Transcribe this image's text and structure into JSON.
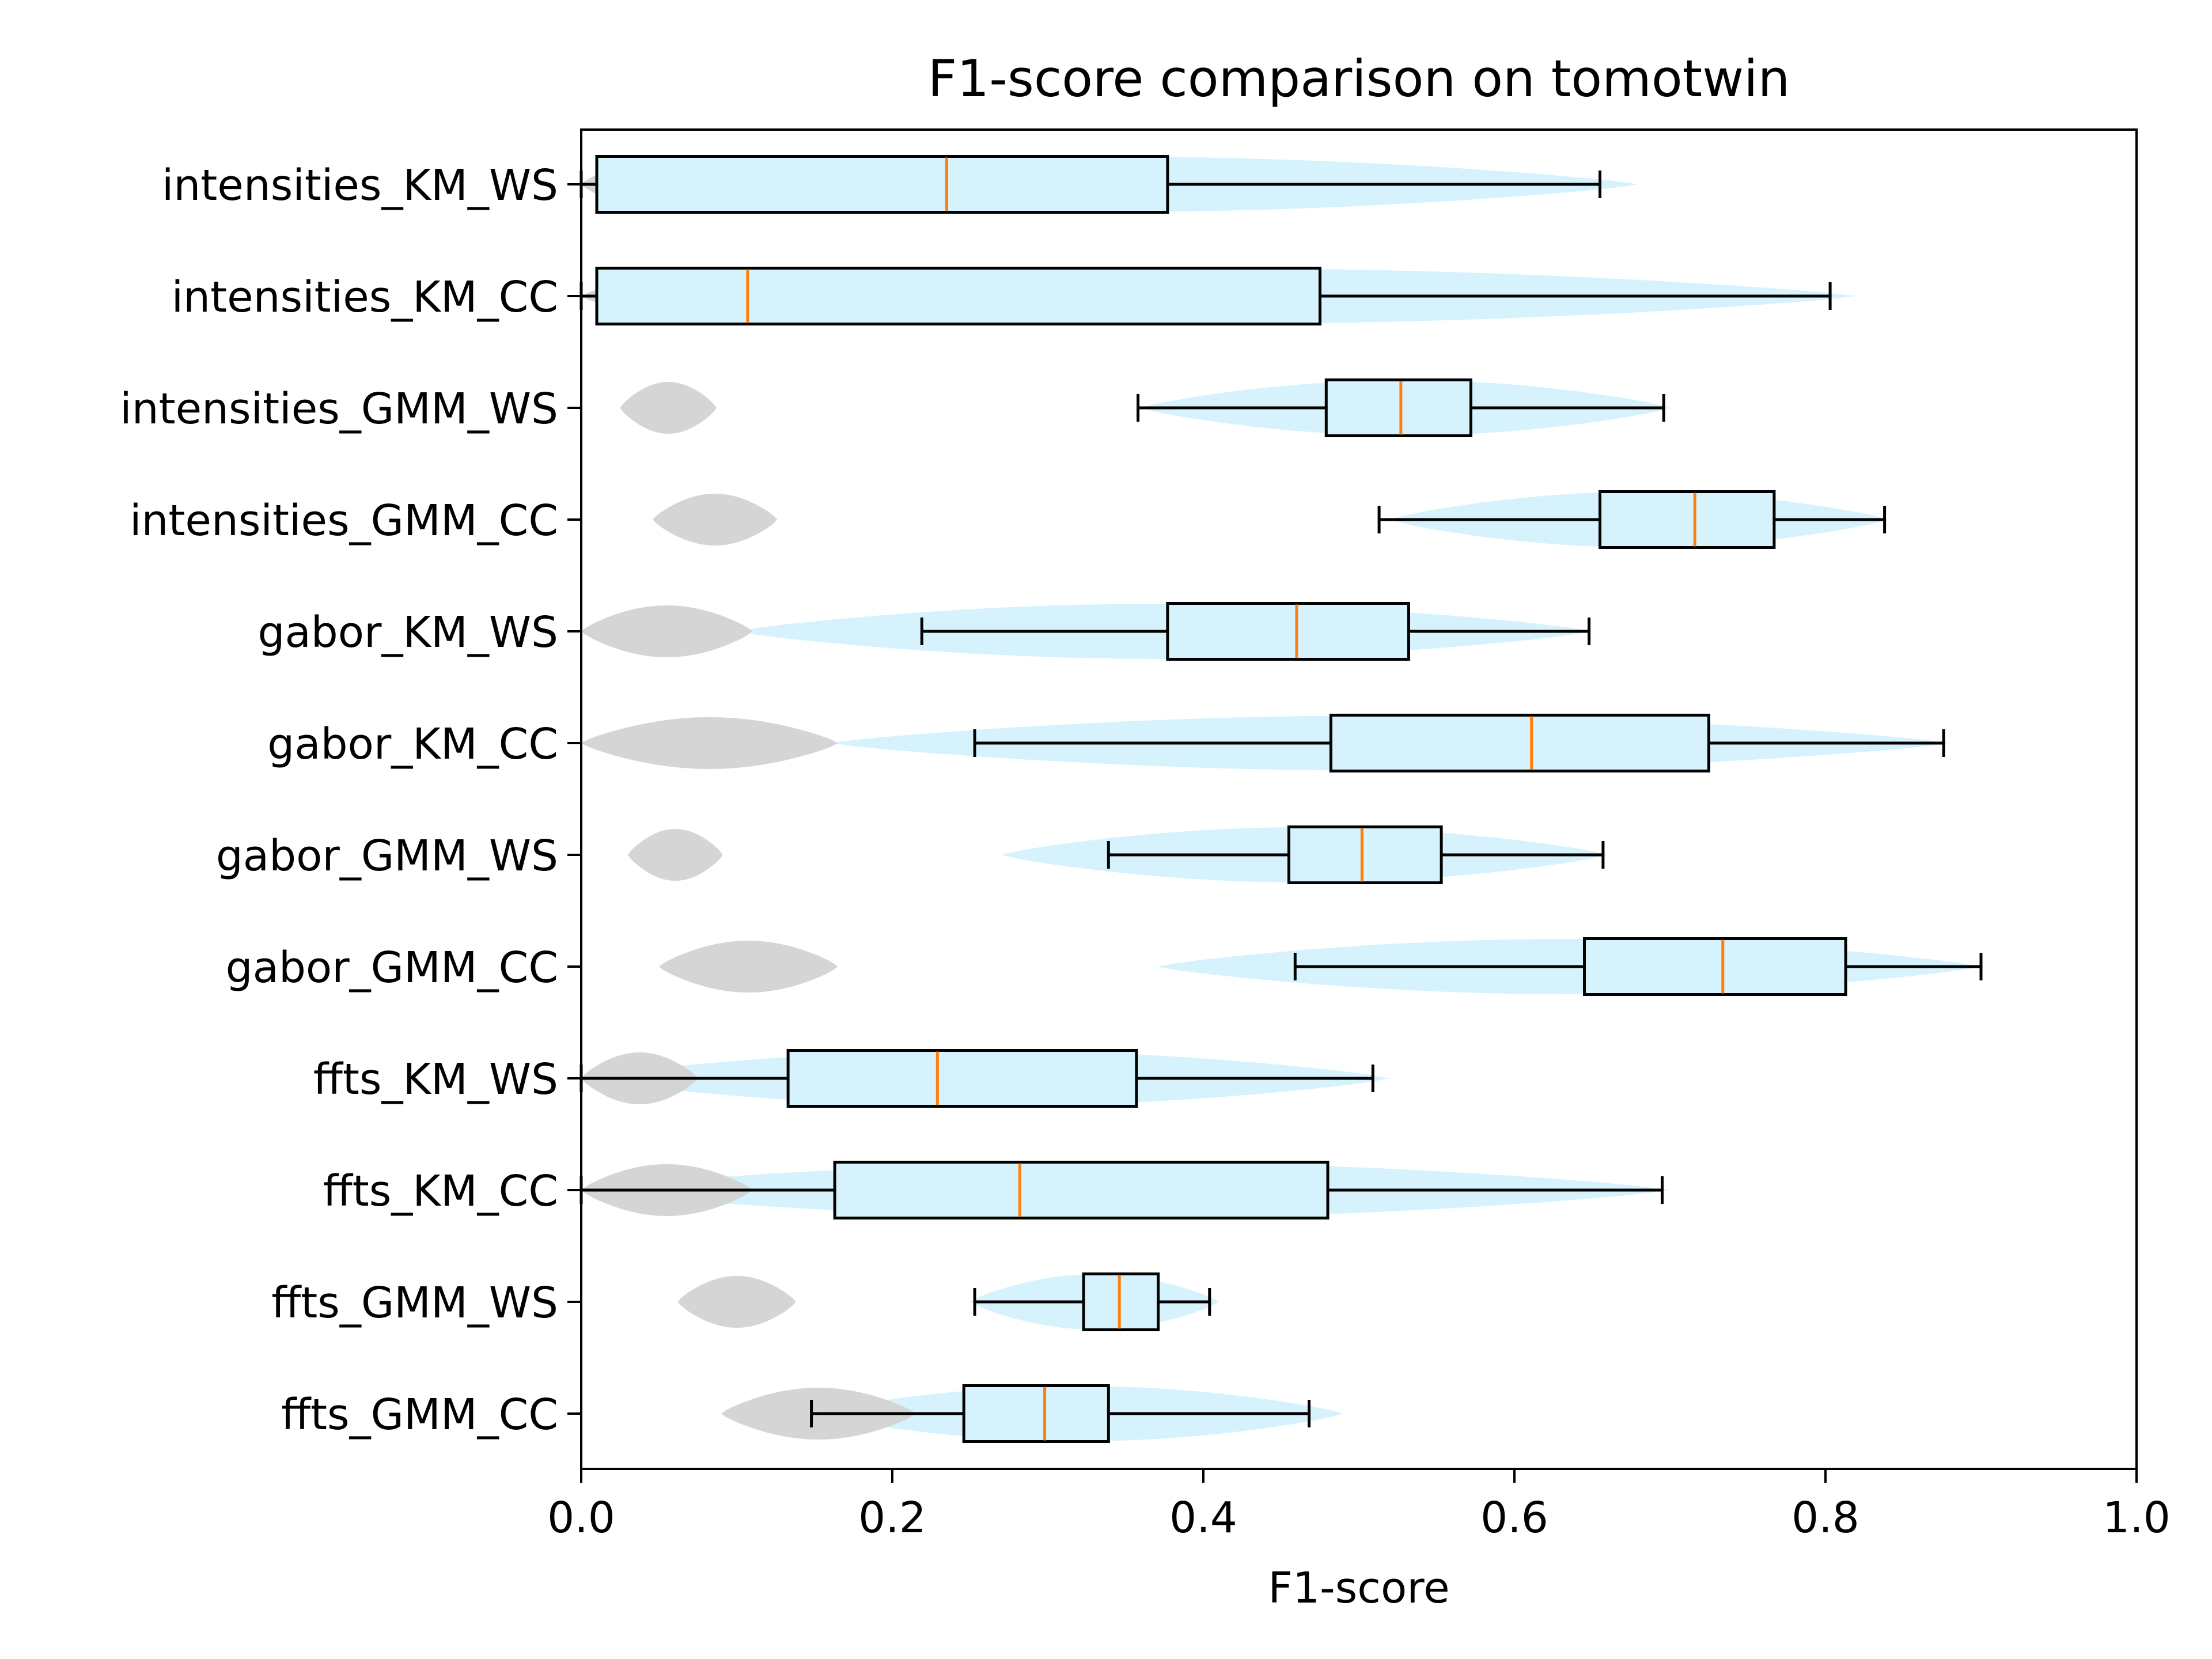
{
  "chart_data": {
    "type": "box",
    "title": "F1-score comparison on tomotwin",
    "xlabel": "F1-score",
    "ylabel": "",
    "xlim": [
      0.0,
      1.0
    ],
    "xticks": [
      "0.0",
      "0.2",
      "0.4",
      "0.6",
      "0.8",
      "1.0"
    ],
    "grid": false,
    "colors": {
      "box_fill": "#d6f3fd",
      "violin_fill": "#d6f3fd",
      "background_violin_fill": "#d3d3d3",
      "median": "#ff7f0e",
      "outline": "#000000"
    },
    "series": [
      {
        "category": "intensities_KM_WS",
        "whisker_low": 0.0,
        "q1": 0.01,
        "median": 0.235,
        "q3": 0.377,
        "whisker_high": 0.655,
        "violin_low": 0.0,
        "violin_high": 0.68,
        "bg_violin_low": 0.0,
        "bg_violin_high": 0.104
      },
      {
        "category": "intensities_KM_CC",
        "whisker_low": 0.0,
        "q1": 0.01,
        "median": 0.107,
        "q3": 0.475,
        "whisker_high": 0.803,
        "violin_low": 0.0,
        "violin_high": 0.82,
        "bg_violin_low": 0.0,
        "bg_violin_high": 0.175
      },
      {
        "category": "intensities_GMM_WS",
        "whisker_low": 0.358,
        "q1": 0.479,
        "median": 0.527,
        "q3": 0.572,
        "whisker_high": 0.696,
        "violin_low": 0.36,
        "violin_high": 0.7,
        "bg_violin_low": 0.025,
        "bg_violin_high": 0.087
      },
      {
        "category": "intensities_GMM_CC",
        "whisker_low": 0.513,
        "q1": 0.655,
        "median": 0.716,
        "q3": 0.767,
        "whisker_high": 0.838,
        "violin_low": 0.52,
        "violin_high": 0.84,
        "bg_violin_low": 0.046,
        "bg_violin_high": 0.126
      },
      {
        "category": "gabor_KM_WS",
        "whisker_low": 0.219,
        "q1": 0.377,
        "median": 0.46,
        "q3": 0.532,
        "whisker_high": 0.648,
        "violin_low": 0.1,
        "violin_high": 0.65,
        "bg_violin_low": 0.0,
        "bg_violin_high": 0.11
      },
      {
        "category": "gabor_KM_CC",
        "whisker_low": 0.253,
        "q1": 0.482,
        "median": 0.611,
        "q3": 0.725,
        "whisker_high": 0.876,
        "violin_low": 0.16,
        "violin_high": 0.88,
        "bg_violin_low": 0.0,
        "bg_violin_high": 0.165
      },
      {
        "category": "gabor_GMM_WS",
        "whisker_low": 0.339,
        "q1": 0.455,
        "median": 0.502,
        "q3": 0.553,
        "whisker_high": 0.657,
        "violin_low": 0.27,
        "violin_high": 0.66,
        "bg_violin_low": 0.03,
        "bg_violin_high": 0.091
      },
      {
        "category": "gabor_GMM_CC",
        "whisker_low": 0.459,
        "q1": 0.645,
        "median": 0.734,
        "q3": 0.813,
        "whisker_high": 0.9,
        "violin_low": 0.37,
        "violin_high": 0.9,
        "bg_violin_low": 0.05,
        "bg_violin_high": 0.165
      },
      {
        "category": "ffts_KM_WS",
        "whisker_low": 0.0,
        "q1": 0.133,
        "median": 0.229,
        "q3": 0.357,
        "whisker_high": 0.509,
        "violin_low": 0.0,
        "violin_high": 0.52,
        "bg_violin_low": 0.0,
        "bg_violin_high": 0.075
      },
      {
        "category": "ffts_KM_CC",
        "whisker_low": 0.0,
        "q1": 0.163,
        "median": 0.282,
        "q3": 0.48,
        "whisker_high": 0.695,
        "violin_low": 0.0,
        "violin_high": 0.7,
        "bg_violin_low": 0.0,
        "bg_violin_high": 0.11
      },
      {
        "category": "ffts_GMM_WS",
        "whisker_low": 0.253,
        "q1": 0.323,
        "median": 0.346,
        "q3": 0.371,
        "whisker_high": 0.404,
        "violin_low": 0.25,
        "violin_high": 0.41,
        "bg_violin_low": 0.062,
        "bg_violin_high": 0.138
      },
      {
        "category": "ffts_GMM_CC",
        "whisker_low": 0.148,
        "q1": 0.246,
        "median": 0.298,
        "q3": 0.339,
        "whisker_high": 0.468,
        "violin_low": 0.15,
        "violin_high": 0.49,
        "bg_violin_low": 0.09,
        "bg_violin_high": 0.215
      }
    ]
  }
}
